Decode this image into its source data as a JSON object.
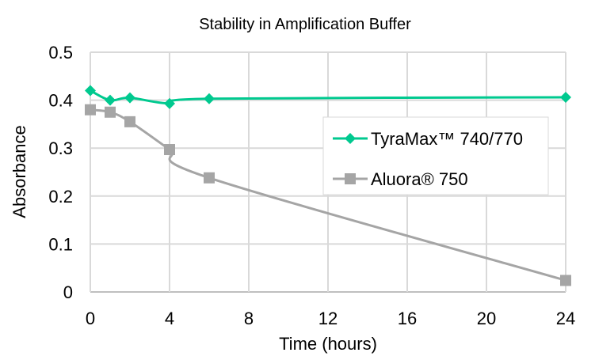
{
  "chart_data": {
    "type": "line",
    "title": "Stability in Amplification Buffer",
    "xlabel": "Time (hours)",
    "ylabel": "Absorbance",
    "xlim": [
      0,
      24
    ],
    "ylim": [
      0,
      0.5
    ],
    "xticks": [
      "0",
      "4",
      "8",
      "12",
      "16",
      "20",
      "24"
    ],
    "yticks": [
      "0",
      "0.1",
      "0.2",
      "0.3",
      "0.4",
      "0.5"
    ],
    "grid": true,
    "legend_position": "right",
    "series": [
      {
        "name": "TyraMax™ 740/770",
        "color": "#00C98F",
        "marker": "diamond",
        "x": [
          0,
          1,
          2,
          4,
          6,
          24
        ],
        "y": [
          0.42,
          0.4,
          0.405,
          0.393,
          0.403,
          0.406
        ]
      },
      {
        "name": "Aluora® 750",
        "color": "#A5A5A5",
        "marker": "square",
        "x": [
          0,
          1,
          2,
          4,
          6,
          24
        ],
        "y": [
          0.38,
          0.375,
          0.355,
          0.297,
          0.238,
          0.024
        ]
      }
    ]
  }
}
